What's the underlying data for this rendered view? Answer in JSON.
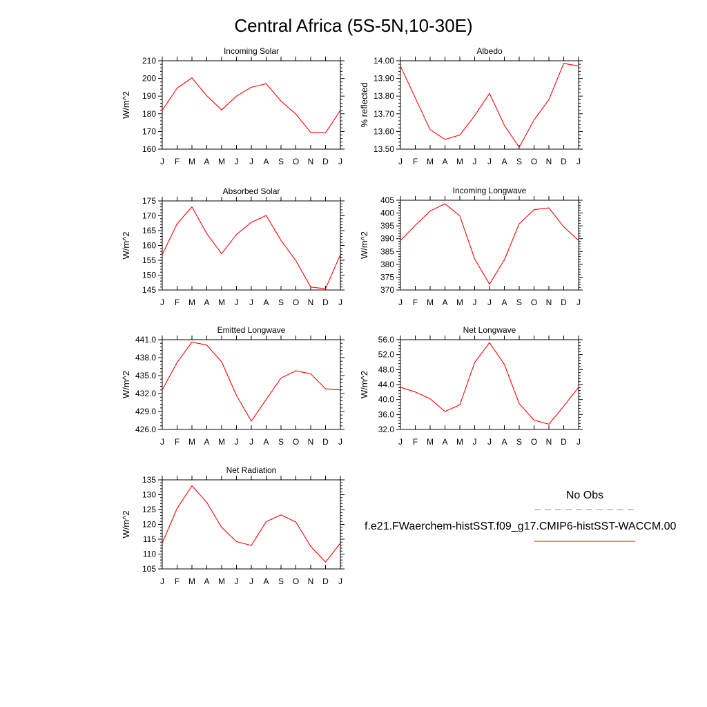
{
  "title": "Central Africa (5S-5N,10-30E)",
  "legend": {
    "obs_label": "No Obs",
    "obs_color": "#8080ff",
    "case_label": "f.e21.FWaerchem-histSST.f09_g17.CMIP6-histSST-WACCM.00",
    "case_color": "#ff0000"
  },
  "month_labels": [
    "J",
    "F",
    "M",
    "A",
    "M",
    "J",
    "J",
    "A",
    "S",
    "O",
    "N",
    "D",
    "J"
  ],
  "chart_data": [
    {
      "type": "line",
      "title": "Incoming Solar",
      "ylabel": "W/m^2",
      "ylim": [
        160,
        210
      ],
      "yticks": [
        160,
        170,
        180,
        190,
        200,
        210
      ],
      "ytick_labels": [
        "160",
        "170",
        "180",
        "190",
        "200",
        "210"
      ],
      "x": [
        "J",
        "F",
        "M",
        "A",
        "M",
        "J",
        "J",
        "A",
        "S",
        "O",
        "N",
        "D",
        "J"
      ],
      "series": [
        {
          "color": "#ff0000",
          "values": [
            182,
            194.5,
            200.3,
            190.2,
            182.2,
            190,
            195,
            197,
            187.2,
            179.8,
            169.5,
            169.2,
            182
          ]
        }
      ]
    },
    {
      "type": "line",
      "title": "Albedo",
      "ylabel": "% reflected",
      "ylim": [
        13.5,
        14.0
      ],
      "yticks": [
        13.5,
        13.6,
        13.7,
        13.8,
        13.9,
        14.0
      ],
      "ytick_labels": [
        "13.50",
        "13.60",
        "13.70",
        "13.80",
        "13.90",
        "14.00"
      ],
      "x": [
        "J",
        "F",
        "M",
        "A",
        "M",
        "J",
        "J",
        "A",
        "S",
        "O",
        "N",
        "D",
        "J"
      ],
      "series": [
        {
          "color": "#ff0000",
          "values": [
            13.97,
            13.79,
            13.61,
            13.555,
            13.58,
            13.69,
            13.815,
            13.635,
            13.51,
            13.665,
            13.78,
            13.985,
            13.97
          ]
        }
      ]
    },
    {
      "type": "line",
      "title": "Absorbed Solar",
      "ylabel": "W/m^2",
      "ylim": [
        145,
        175
      ],
      "yticks": [
        145,
        150,
        155,
        160,
        165,
        170,
        175
      ],
      "ytick_labels": [
        "145",
        "150",
        "155",
        "160",
        "165",
        "170",
        "175"
      ],
      "x": [
        "J",
        "F",
        "M",
        "A",
        "M",
        "J",
        "J",
        "A",
        "S",
        "O",
        "N",
        "D",
        "J"
      ],
      "series": [
        {
          "color": "#ff0000",
          "values": [
            156.9,
            167.3,
            173,
            164,
            157.2,
            163.7,
            167.8,
            170.1,
            161.7,
            154.9,
            146,
            145.4,
            156.9
          ]
        }
      ]
    },
    {
      "type": "line",
      "title": "Incoming Longwave",
      "ylabel": "W/m^2",
      "ylim": [
        370,
        405
      ],
      "yticks": [
        370,
        375,
        380,
        385,
        390,
        395,
        400,
        405
      ],
      "ytick_labels": [
        "370",
        "375",
        "380",
        "385",
        "390",
        "395",
        "400",
        "405"
      ],
      "x": [
        "J",
        "F",
        "M",
        "A",
        "M",
        "J",
        "J",
        "A",
        "S",
        "O",
        "N",
        "D",
        "J"
      ],
      "series": [
        {
          "color": "#ff0000",
          "values": [
            389.3,
            395.2,
            400.8,
            403.6,
            398.9,
            382.1,
            372.3,
            381.8,
            395.8,
            401.3,
            402,
            394.6,
            389.3
          ]
        }
      ]
    },
    {
      "type": "line",
      "title": "Emitted Longwave",
      "ylabel": "W/m^2",
      "ylim": [
        426.0,
        441.0
      ],
      "yticks": [
        426,
        429,
        432,
        435,
        438,
        441
      ],
      "ytick_labels": [
        "426.0",
        "429.0",
        "432.0",
        "435.0",
        "438.0",
        "441.0"
      ],
      "x": [
        "J",
        "F",
        "M",
        "A",
        "M",
        "J",
        "J",
        "A",
        "S",
        "O",
        "N",
        "D",
        "J"
      ],
      "series": [
        {
          "color": "#ff0000",
          "values": [
            432.6,
            437.2,
            440.6,
            440.1,
            437.3,
            431.7,
            427.4,
            431,
            434.6,
            435.8,
            435.3,
            432.8,
            432.6
          ]
        }
      ]
    },
    {
      "type": "line",
      "title": "Net Longwave",
      "ylabel": "W/m^2",
      "ylim": [
        32.0,
        56.0
      ],
      "yticks": [
        32,
        36,
        40,
        44,
        48,
        52,
        56
      ],
      "ytick_labels": [
        "32.0",
        "36.0",
        "40.0",
        "44.0",
        "48.0",
        "52.0",
        "56.0"
      ],
      "x": [
        "J",
        "F",
        "M",
        "A",
        "M",
        "J",
        "J",
        "A",
        "S",
        "O",
        "N",
        "D",
        "J"
      ],
      "series": [
        {
          "color": "#ff0000",
          "values": [
            43.3,
            42,
            40.2,
            36.8,
            38.6,
            49.9,
            55.2,
            49.4,
            38.9,
            34.5,
            33.4,
            38.2,
            43.3
          ]
        }
      ]
    },
    {
      "type": "line",
      "title": "Net Radiation",
      "ylabel": "W/m^2",
      "ylim": [
        105,
        135
      ],
      "yticks": [
        105,
        110,
        115,
        120,
        125,
        130,
        135
      ],
      "ytick_labels": [
        "105",
        "110",
        "115",
        "120",
        "125",
        "130",
        "135"
      ],
      "x": [
        "J",
        "F",
        "M",
        "A",
        "M",
        "J",
        "J",
        "A",
        "S",
        "O",
        "N",
        "D",
        "J"
      ],
      "series": [
        {
          "color": "#ff0000",
          "values": [
            113.7,
            125.4,
            133,
            127.4,
            119,
            114.2,
            112.9,
            120.9,
            123.2,
            120.8,
            112.6,
            107.3,
            113.7
          ]
        }
      ]
    }
  ]
}
